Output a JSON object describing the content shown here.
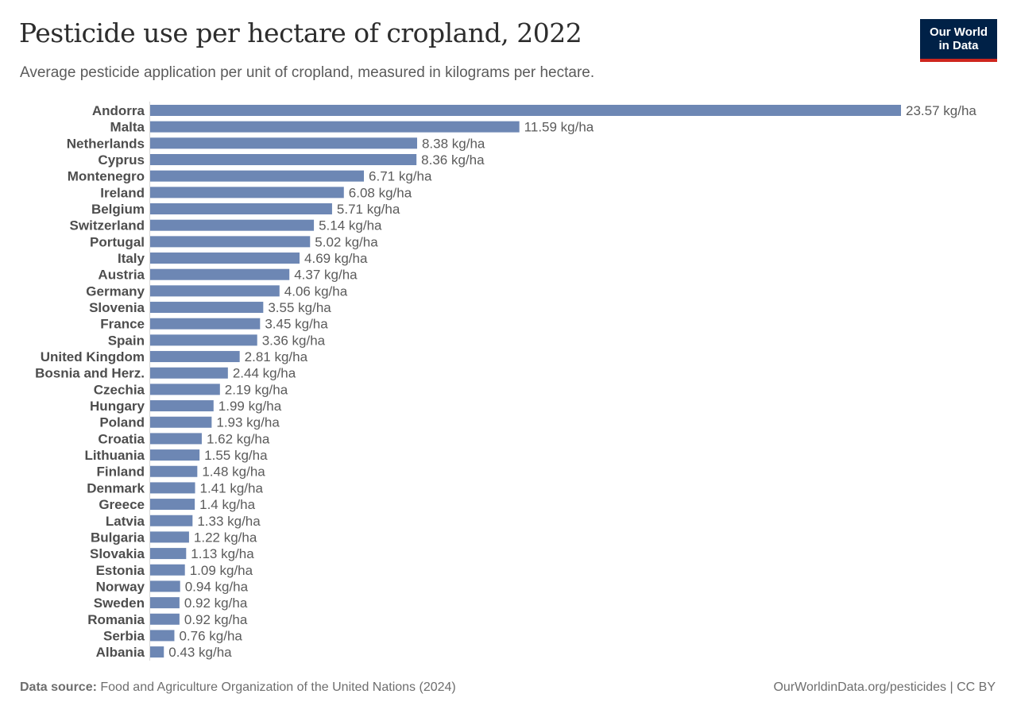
{
  "header": {
    "title": "Pesticide use per hectare of cropland, 2022",
    "subtitle": "Average pesticide application per unit of cropland, measured in kilograms per hectare.",
    "logo_line1": "Our World",
    "logo_line2": "in Data"
  },
  "footer": {
    "source_label": "Data source:",
    "source_text": "Food and Agriculture Organization of the United Nations (2024)",
    "link_text": "OurWorldinData.org/pesticides | CC BY"
  },
  "colors": {
    "bar": "#6d87b4",
    "axis": "#d9d9d9",
    "label": "#4d4d4d",
    "value_label": "#5b5b5b",
    "logo_bg": "#002147",
    "logo_accent": "#ce261e"
  },
  "chart_data": {
    "type": "bar",
    "orientation": "horizontal",
    "title": "Pesticide use per hectare of cropland, 2022",
    "subtitle": "Average pesticide application per unit of cropland, measured in kilograms per hectare.",
    "xlabel": "",
    "ylabel": "",
    "unit": "kg/ha",
    "grid": false,
    "legend": "none",
    "xlim": [
      0,
      23.57
    ],
    "categories": [
      "Andorra",
      "Malta",
      "Netherlands",
      "Cyprus",
      "Montenegro",
      "Ireland",
      "Belgium",
      "Switzerland",
      "Portugal",
      "Italy",
      "Austria",
      "Germany",
      "Slovenia",
      "France",
      "Spain",
      "United Kingdom",
      "Bosnia and Herz.",
      "Czechia",
      "Hungary",
      "Poland",
      "Croatia",
      "Lithuania",
      "Finland",
      "Denmark",
      "Greece",
      "Latvia",
      "Bulgaria",
      "Slovakia",
      "Estonia",
      "Norway",
      "Sweden",
      "Romania",
      "Serbia",
      "Albania"
    ],
    "values": [
      23.57,
      11.59,
      8.38,
      8.36,
      6.71,
      6.08,
      5.71,
      5.14,
      5.02,
      4.69,
      4.37,
      4.06,
      3.55,
      3.45,
      3.36,
      2.81,
      2.44,
      2.19,
      1.99,
      1.93,
      1.62,
      1.55,
      1.48,
      1.41,
      1.4,
      1.33,
      1.22,
      1.13,
      1.09,
      0.94,
      0.92,
      0.92,
      0.76,
      0.43
    ],
    "value_labels": [
      "23.57 kg/ha",
      "11.59 kg/ha",
      "8.38 kg/ha",
      "8.36 kg/ha",
      "6.71 kg/ha",
      "6.08 kg/ha",
      "5.71 kg/ha",
      "5.14 kg/ha",
      "5.02 kg/ha",
      "4.69 kg/ha",
      "4.37 kg/ha",
      "4.06 kg/ha",
      "3.55 kg/ha",
      "3.45 kg/ha",
      "3.36 kg/ha",
      "2.81 kg/ha",
      "2.44 kg/ha",
      "2.19 kg/ha",
      "1.99 kg/ha",
      "1.93 kg/ha",
      "1.62 kg/ha",
      "1.55 kg/ha",
      "1.48 kg/ha",
      "1.41 kg/ha",
      "1.4 kg/ha",
      "1.33 kg/ha",
      "1.22 kg/ha",
      "1.13 kg/ha",
      "1.09 kg/ha",
      "0.94 kg/ha",
      "0.92 kg/ha",
      "0.92 kg/ha",
      "0.76 kg/ha",
      "0.43 kg/ha"
    ]
  }
}
